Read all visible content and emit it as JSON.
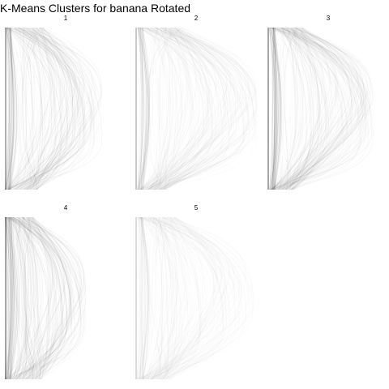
{
  "title": "K-Means Clusters for banana Rotated",
  "panels": [
    {
      "label": "1",
      "ink": "#000000"
    },
    {
      "label": "2",
      "ink": "#000000"
    },
    {
      "label": "3",
      "ink": "#000000"
    },
    {
      "label": "4",
      "ink": "#000000"
    },
    {
      "label": "5",
      "ink": "#000000"
    }
  ]
}
